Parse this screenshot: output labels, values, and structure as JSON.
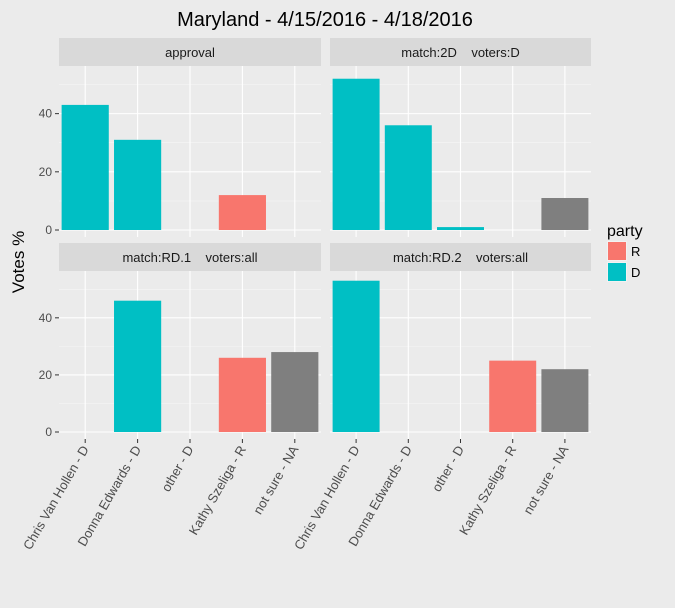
{
  "chart_data": {
    "type": "bar",
    "title": "Maryland - 4/15/2016 - 4/18/2016",
    "ylabel": "Votes %",
    "xlabel": "",
    "ylim": [
      0,
      55
    ],
    "yticks": [
      0,
      20,
      40
    ],
    "categories": [
      "Chris Van Hollen - D",
      "Donna Edwards - D",
      "other - D",
      "Kathy Szeliga - R",
      "not sure - NA"
    ],
    "category_party": [
      "D",
      "D",
      "D",
      "R",
      "NA"
    ],
    "colors": {
      "R": "#f8766d",
      "D": "#00bfc4",
      "NA": "#7f7f7f"
    },
    "legend": {
      "title": "party",
      "position": "right",
      "entries": [
        "R",
        "D"
      ]
    },
    "grid": true,
    "facets": [
      {
        "label": "approval",
        "values": [
          43,
          31,
          0,
          12,
          null
        ]
      },
      {
        "label": "match:2D    voters:D",
        "values": [
          52,
          36,
          1,
          null,
          11
        ]
      },
      {
        "label": "match:RD.1    voters:all",
        "values": [
          null,
          46,
          null,
          26,
          28
        ]
      },
      {
        "label": "match:RD.2    voters:all",
        "values": [
          53,
          null,
          null,
          25,
          22
        ]
      }
    ]
  }
}
